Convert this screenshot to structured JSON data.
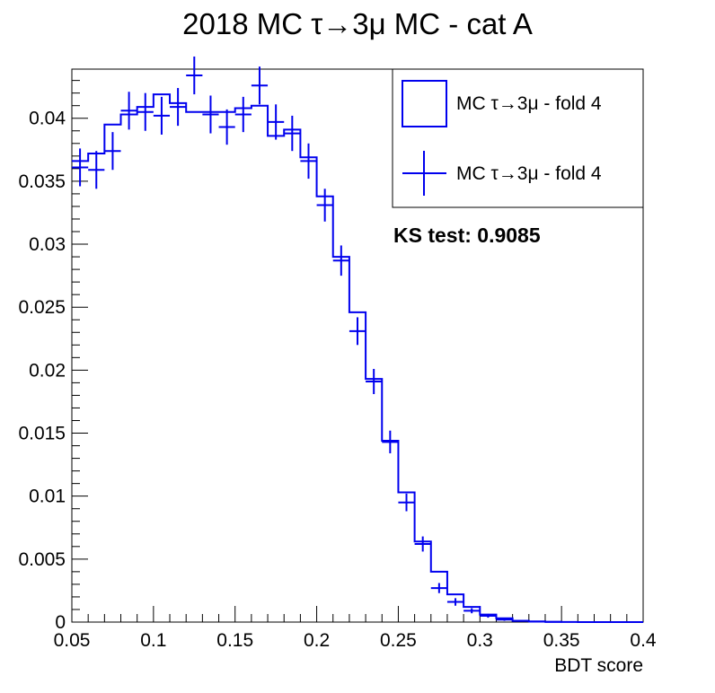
{
  "chart_data": {
    "type": "bar",
    "title": "2018 MC τ→3μ MC - cat A",
    "xlabel": "BDT score",
    "ylabel": "",
    "xlim": [
      0.05,
      0.4
    ],
    "ylim": [
      0,
      0.0439
    ],
    "x_ticks": [
      "0.05",
      "0.1",
      "0.15",
      "0.2",
      "0.25",
      "0.3",
      "0.35",
      "0.4"
    ],
    "y_ticks": [
      "0",
      "0.005",
      "0.01",
      "0.015",
      "0.02",
      "0.025",
      "0.03",
      "0.035",
      "0.04"
    ],
    "bin_edges": [
      0.05,
      0.06,
      0.07,
      0.08,
      0.09,
      0.1,
      0.11,
      0.12,
      0.13,
      0.14,
      0.15,
      0.16,
      0.17,
      0.18,
      0.19,
      0.2,
      0.21,
      0.22,
      0.23,
      0.24,
      0.25,
      0.26,
      0.27,
      0.28,
      0.29,
      0.3,
      0.31,
      0.32,
      0.33,
      0.34,
      0.35,
      0.36,
      0.37,
      0.38,
      0.39,
      0.4
    ],
    "series": [
      {
        "name": "MC τ→3μ - fold 4",
        "style": "histogram",
        "color": "#0000ee",
        "values": [
          0.0366,
          0.0372,
          0.0395,
          0.0403,
          0.0409,
          0.0419,
          0.0412,
          0.0405,
          0.0405,
          0.0405,
          0.0408,
          0.041,
          0.0386,
          0.0391,
          0.0369,
          0.0338,
          0.029,
          0.0246,
          0.0193,
          0.0144,
          0.0103,
          0.0064,
          0.004,
          0.0022,
          0.0012,
          0.0006,
          0.0003,
          0.0001,
          5e-05,
          2e-05,
          1e-05,
          0,
          0,
          0,
          0
        ]
      },
      {
        "name": "MC τ→3μ - fold 4",
        "style": "points_with_errors",
        "color": "#0000ee",
        "values": [
          0.0361,
          0.0359,
          0.0374,
          0.0406,
          0.0405,
          0.0402,
          0.0409,
          0.0434,
          0.0403,
          0.0393,
          0.0403,
          0.0426,
          0.0397,
          0.0388,
          0.0366,
          0.0331,
          0.0287,
          0.0231,
          0.0191,
          0.0143,
          0.0095,
          0.0062,
          0.0027,
          0.0016,
          0.0009,
          0.0005,
          0.0002,
          0.0001,
          4e-05,
          2e-05,
          0,
          0,
          0,
          0,
          0
        ],
        "errors": [
          0.0015,
          0.0015,
          0.0015,
          0.0015,
          0.0015,
          0.0015,
          0.0015,
          0.0015,
          0.0015,
          0.0014,
          0.0014,
          0.0015,
          0.0014,
          0.0014,
          0.0014,
          0.0013,
          0.0012,
          0.0011,
          0.001,
          0.0009,
          0.0007,
          0.0006,
          0.0004,
          0.0003,
          0.0002,
          0.00015,
          0.0001,
          5e-05,
          3e-05,
          2e-05,
          0,
          0,
          0,
          0,
          0
        ]
      }
    ],
    "legend_position": "top-right",
    "annotation": "KS test: 0.9085"
  }
}
